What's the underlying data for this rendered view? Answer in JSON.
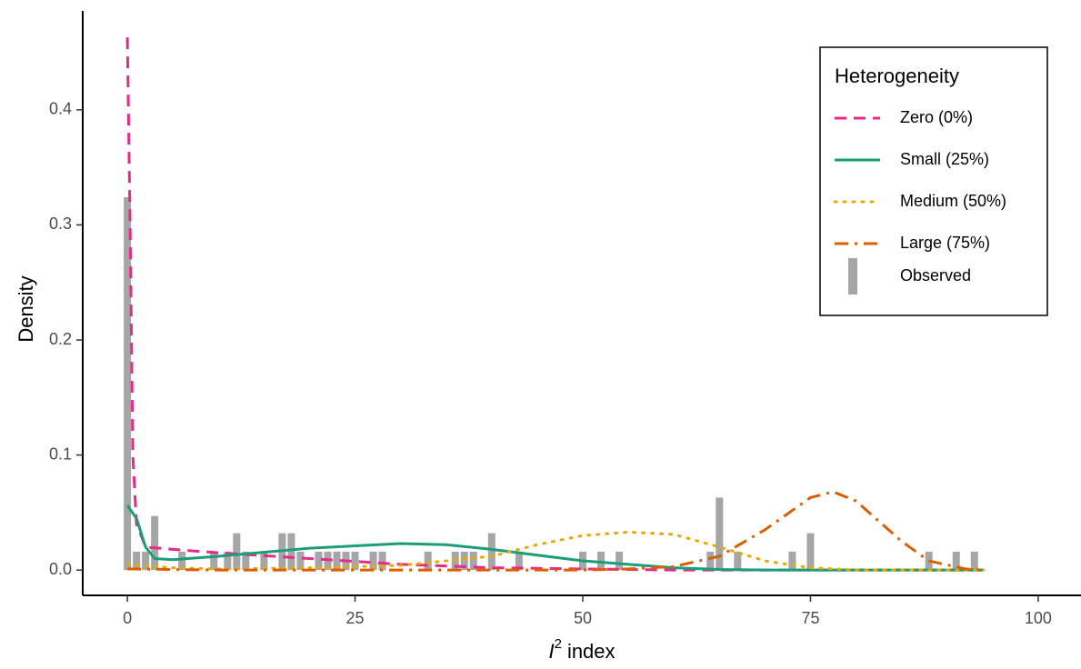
{
  "chart_data": {
    "type": "line",
    "x_label": {
      "symbol": "I",
      "superscript": "2",
      "text": "index"
    },
    "y_label": "Density",
    "xlim": [
      -4.9,
      104.7
    ],
    "ylim": [
      -0.022,
      0.486
    ],
    "xticks": [
      0,
      25,
      50,
      75,
      100
    ],
    "yticks": [
      {
        "value": 0,
        "label": "0.0"
      },
      0.1,
      0.2,
      0.3,
      0.4
    ],
    "grid": false,
    "legend": {
      "title": "Heterogeneity",
      "position": "top-right"
    },
    "series": [
      {
        "name": "Zero (0%)",
        "color": "#e7298a",
        "style": "dashed",
        "x": [
          0,
          0.3,
          0.6,
          1,
          2,
          5,
          10,
          20,
          30,
          40,
          50,
          60,
          94
        ],
        "values": [
          0.463,
          0.3,
          0.1,
          0.04,
          0.02,
          0.018,
          0.015,
          0.01,
          0.005,
          0.002,
          0.001,
          0,
          0
        ]
      },
      {
        "name": "Small (25%)",
        "color": "#1b9e77",
        "style": "solid",
        "x": [
          0,
          1,
          2,
          3,
          5,
          10,
          20,
          30,
          35,
          40,
          45,
          50,
          55,
          60,
          65,
          70,
          94
        ],
        "values": [
          0.056,
          0.045,
          0.02,
          0.01,
          0.009,
          0.012,
          0.019,
          0.023,
          0.022,
          0.018,
          0.013,
          0.008,
          0.005,
          0.002,
          0.0005,
          0,
          0
        ]
      },
      {
        "name": "Medium (50%)",
        "color": "#e6ab02",
        "style": "dotted",
        "x": [
          0,
          5,
          10,
          20,
          30,
          40,
          45,
          50,
          55,
          60,
          65,
          70,
          75,
          80,
          94
        ],
        "values": [
          0.005,
          0.002,
          0.001,
          0.002,
          0.004,
          0.012,
          0.022,
          0.03,
          0.033,
          0.031,
          0.02,
          0.008,
          0.002,
          0,
          0
        ]
      },
      {
        "name": "Large (75%)",
        "color": "#d95f02",
        "style": "dashdot",
        "x": [
          0,
          10,
          30,
          50,
          55,
          60,
          65,
          70,
          75,
          77.5,
          80,
          85,
          88,
          92,
          94
        ],
        "values": [
          0.001,
          0,
          0,
          0,
          0.001,
          0.003,
          0.012,
          0.035,
          0.063,
          0.068,
          0.06,
          0.025,
          0.008,
          0.001,
          0
        ]
      }
    ],
    "observed": {
      "name": "Observed",
      "type": "bar",
      "color": "#a6a6a6",
      "x": [
        0,
        1,
        2,
        3,
        6,
        9.5,
        11,
        12,
        13,
        15,
        17,
        18,
        19,
        21,
        22,
        23,
        24,
        25,
        27,
        28,
        33,
        36,
        37,
        38,
        40,
        43,
        50,
        52,
        54,
        64,
        65,
        67,
        73,
        75,
        88,
        91,
        93
      ],
      "values": [
        0.324,
        0.016,
        0.016,
        0.047,
        0.016,
        0.016,
        0.016,
        0.032,
        0.016,
        0.016,
        0.032,
        0.032,
        0.016,
        0.016,
        0.016,
        0.016,
        0.016,
        0.016,
        0.016,
        0.016,
        0.016,
        0.016,
        0.016,
        0.016,
        0.032,
        0.016,
        0.016,
        0.016,
        0.016,
        0.016,
        0.063,
        0.016,
        0.016,
        0.032,
        0.016,
        0.016,
        0.016
      ]
    }
  }
}
